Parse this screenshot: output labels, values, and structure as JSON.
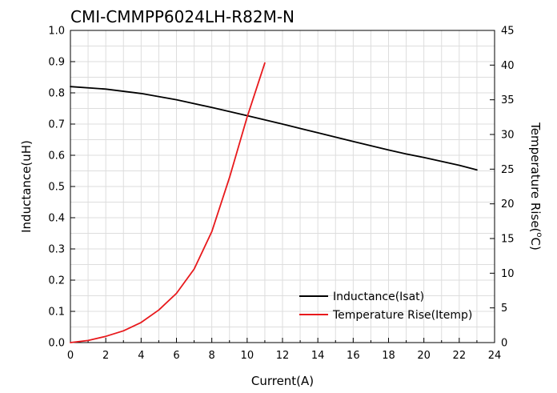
{
  "chart_data": {
    "type": "line",
    "title": "CMI-CMMPP6024LH-R82M-N",
    "xlabel": "Current(A)",
    "ylabel_left": "Inductance(uH)",
    "ylabel_right": "Temperature Rise(°C)",
    "ylabel_right_main": "Temperature Rise(",
    "ylabel_right_sup": "o",
    "ylabel_right_end": "C)",
    "xlim": [
      0,
      24
    ],
    "ylim_left": [
      0,
      1.0
    ],
    "ylim_right": [
      0,
      45
    ],
    "x_ticks": [
      "0",
      "2",
      "4",
      "6",
      "8",
      "10",
      "12",
      "14",
      "16",
      "18",
      "20",
      "22",
      "24"
    ],
    "y_left_ticks": [
      "0.0",
      "0.1",
      "0.2",
      "0.3",
      "0.4",
      "0.5",
      "0.6",
      "0.7",
      "0.8",
      "0.9",
      "1.0"
    ],
    "y_right_ticks": [
      "0",
      "5",
      "10",
      "15",
      "20",
      "25",
      "30",
      "35",
      "40",
      "45"
    ],
    "grid": true,
    "legend_position": "bottom-right",
    "series": [
      {
        "name": "Inductance(Isat)",
        "axis": "left",
        "color": "#000000",
        "x": [
          0,
          2,
          4,
          6,
          8,
          10,
          12,
          14,
          16,
          18,
          19,
          20,
          22,
          23
        ],
        "y": [
          0.82,
          0.812,
          0.798,
          0.778,
          0.753,
          0.727,
          0.7,
          0.672,
          0.644,
          0.617,
          0.604,
          0.593,
          0.568,
          0.553
        ]
      },
      {
        "name": "Temperature Rise(Itemp)",
        "axis": "right",
        "color": "#e8191c",
        "x": [
          0,
          1,
          2,
          3,
          4,
          5,
          6,
          7,
          8,
          9,
          10,
          11
        ],
        "y": [
          0,
          0.3,
          0.9,
          1.7,
          2.9,
          4.7,
          7.1,
          10.6,
          16.0,
          23.8,
          32.5,
          40.3
        ]
      }
    ]
  }
}
